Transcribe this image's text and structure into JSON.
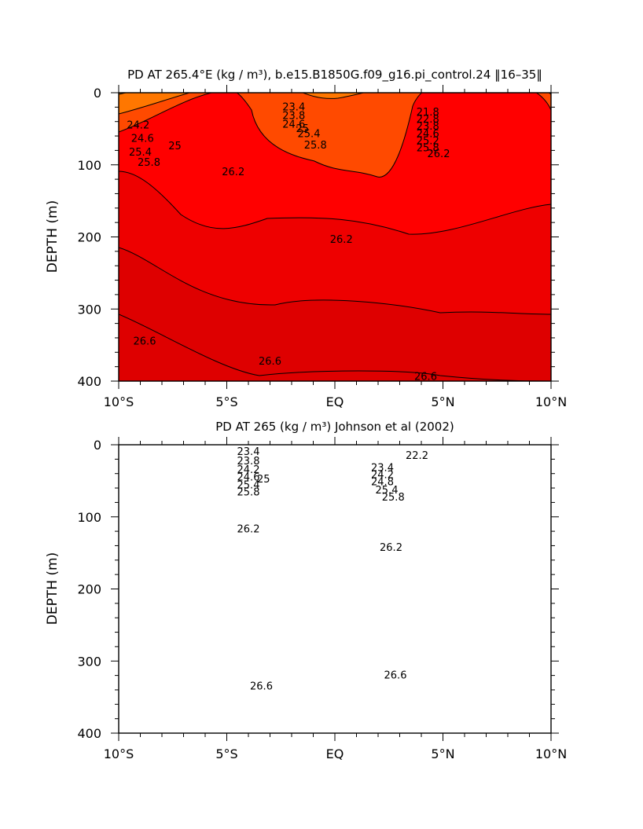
{
  "chart_data": [
    {
      "type": "contour",
      "title": "PD AT 265.4°E (kg / m³), b.e15.B1850G.f09_g16.pi_control.24 ‖16–35‖",
      "xlabel": "",
      "ylabel": "DEPTH (m)",
      "x_ticks": [
        "10°S",
        "5°S",
        "EQ",
        "5°N",
        "10°N"
      ],
      "y_ticks": [
        "0",
        "100",
        "200",
        "300",
        "400"
      ],
      "xlim": [
        -10,
        10
      ],
      "ylim": [
        0,
        400
      ],
      "y_inverted": true,
      "data_x_range": [
        -10,
        10
      ],
      "contour_levels": [
        26.6,
        26.4,
        26.2,
        26.0,
        25.8,
        25.6,
        25.4,
        25.2,
        25.0,
        24.8,
        24.6,
        24.4,
        24.2,
        24.0,
        23.8,
        23.6,
        23.4,
        23.2,
        23.0,
        22.8,
        22.6,
        22.4,
        22.2,
        22.0,
        21.8,
        21.6
      ],
      "contour_labels": [
        {
          "text": "23.4",
          "x": -1.9,
          "y": 20
        },
        {
          "text": "23.8",
          "x": -1.9,
          "y": 32
        },
        {
          "text": "24.6",
          "x": -1.9,
          "y": 44
        },
        {
          "text": "25",
          "x": -1.5,
          "y": 50
        },
        {
          "text": "24.2",
          "x": -9.1,
          "y": 45
        },
        {
          "text": "24.6",
          "x": -8.9,
          "y": 64
        },
        {
          "text": "25",
          "x": -7.4,
          "y": 74
        },
        {
          "text": "25.4",
          "x": -9.0,
          "y": 83
        },
        {
          "text": "25.8",
          "x": -8.6,
          "y": 97
        },
        {
          "text": "25.4",
          "x": -1.2,
          "y": 57
        },
        {
          "text": "25.8",
          "x": -0.9,
          "y": 73
        },
        {
          "text": "26.2",
          "x": -4.7,
          "y": 110
        },
        {
          "text": "26.2",
          "x": 0.3,
          "y": 204
        },
        {
          "text": "26.6",
          "x": -8.8,
          "y": 345
        },
        {
          "text": "26.6",
          "x": -3.0,
          "y": 373
        },
        {
          "text": "26.6",
          "x": 4.2,
          "y": 394
        },
        {
          "text": "21.8",
          "x": 4.3,
          "y": 27
        },
        {
          "text": "22.8",
          "x": 4.3,
          "y": 37
        },
        {
          "text": "23.8",
          "x": 4.3,
          "y": 47
        },
        {
          "text": "24.6",
          "x": 4.3,
          "y": 57
        },
        {
          "text": "25.2",
          "x": 4.3,
          "y": 67
        },
        {
          "text": "25.8",
          "x": 4.3,
          "y": 77
        },
        {
          "text": "26.2",
          "x": 4.8,
          "y": 85
        }
      ],
      "grid": false,
      "legend": "none"
    },
    {
      "type": "contour",
      "title": "PD AT 265 (kg / m³) Johnson et al (2002)",
      "xlabel": "",
      "ylabel": "DEPTH (m)",
      "x_ticks": [
        "10°S",
        "5°S",
        "EQ",
        "5°N",
        "10°N"
      ],
      "y_ticks": [
        "0",
        "100",
        "200",
        "300",
        "400"
      ],
      "xlim": [
        -10,
        10
      ],
      "ylim": [
        0,
        400
      ],
      "y_inverted": true,
      "data_x_range": [
        -8,
        8
      ],
      "contour_levels": [
        26.8,
        26.6,
        26.4,
        26.2,
        26.0,
        25.8,
        25.6,
        25.4,
        25.2,
        25.0,
        24.8,
        24.6,
        24.4,
        24.2,
        24.0,
        23.8,
        23.6,
        23.4,
        23.2,
        23.0,
        22.8,
        22.6,
        22.4,
        22.2,
        22.0,
        21.8,
        21.6
      ],
      "contour_labels": [
        {
          "text": "23.4",
          "x": -4.0,
          "y": 10
        },
        {
          "text": "23.8",
          "x": -4.0,
          "y": 23
        },
        {
          "text": "24.2",
          "x": -4.0,
          "y": 35
        },
        {
          "text": "24.6",
          "x": -4.0,
          "y": 45
        },
        {
          "text": "25",
          "x": -3.3,
          "y": 48
        },
        {
          "text": "25.4",
          "x": -4.0,
          "y": 56
        },
        {
          "text": "25.8",
          "x": -4.0,
          "y": 66
        },
        {
          "text": "22.2",
          "x": 3.8,
          "y": 15
        },
        {
          "text": "23.4",
          "x": 2.2,
          "y": 32
        },
        {
          "text": "24.2",
          "x": 2.2,
          "y": 42
        },
        {
          "text": "24.8",
          "x": 2.2,
          "y": 52
        },
        {
          "text": "25.4",
          "x": 2.4,
          "y": 63
        },
        {
          "text": "25.8",
          "x": 2.7,
          "y": 73
        },
        {
          "text": "26.2",
          "x": -4.0,
          "y": 117
        },
        {
          "text": "26.2",
          "x": 2.6,
          "y": 143
        },
        {
          "text": "26.6",
          "x": -3.4,
          "y": 335
        },
        {
          "text": "26.6",
          "x": 2.8,
          "y": 320
        }
      ],
      "grid": false,
      "legend": "none"
    }
  ]
}
